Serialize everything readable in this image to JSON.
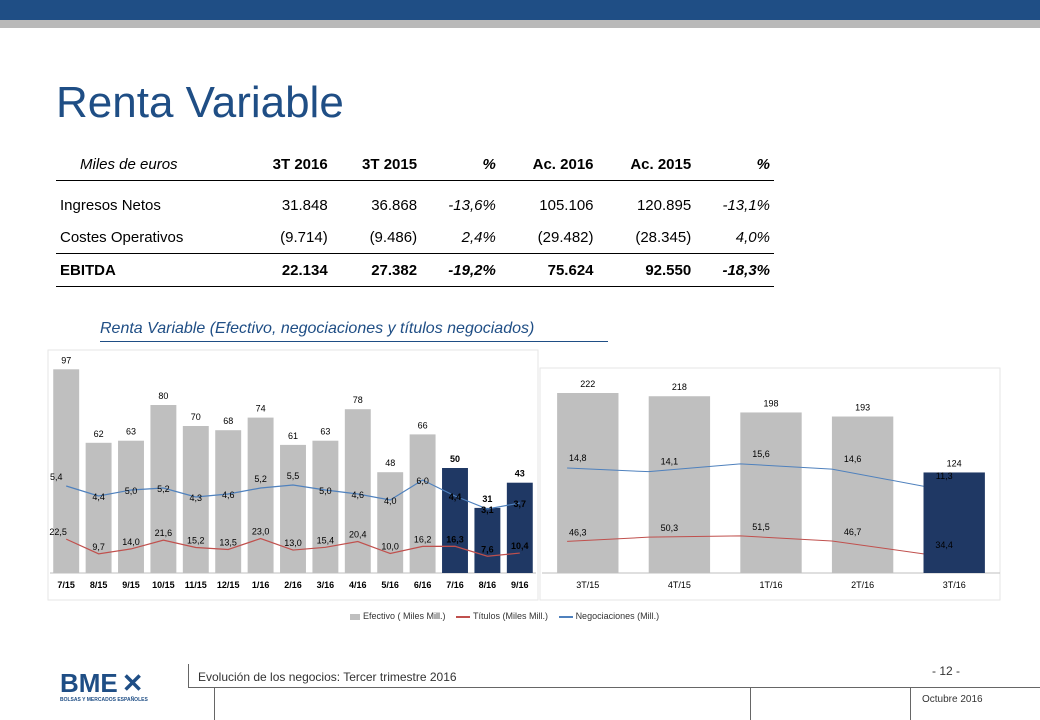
{
  "title": "Renta Variable",
  "table": {
    "headers": [
      "Miles de euros",
      "3T 2016",
      "3T 2015",
      "%",
      "Ac. 2016",
      "Ac. 2015",
      "%"
    ],
    "rows": [
      {
        "label": "Ingresos Netos",
        "v1": "31.848",
        "v2": "36.868",
        "p1": "-13,6%",
        "v3": "105.106",
        "v4": "120.895",
        "p2": "-13,1%"
      },
      {
        "label": "Costes Operativos",
        "v1": "(9.714)",
        "v2": "(9.486)",
        "p1": "2,4%",
        "v3": "(29.482)",
        "v4": "(28.345)",
        "p2": "4,0%"
      }
    ],
    "total": {
      "label": "EBITDA",
      "v1": "22.134",
      "v2": "27.382",
      "p1": "-19,2%",
      "v3": "75.624",
      "v4": "92.550",
      "p2": "-18,3%"
    }
  },
  "chart_subtitle": "Renta Variable (Efectivo, negociaciones y títulos negociados)",
  "chart_data": [
    {
      "type": "bar",
      "categories": [
        "7/15",
        "8/15",
        "9/15",
        "10/15",
        "11/15",
        "12/15",
        "1/16",
        "2/16",
        "3/16",
        "4/16",
        "5/16",
        "6/16",
        "7/16",
        "8/16",
        "9/16"
      ],
      "series": [
        {
          "name": "Efectivo ( Miles Mill.)",
          "values": [
            97,
            62,
            63,
            80,
            70,
            68,
            74,
            61,
            63,
            78,
            48,
            66,
            50,
            31,
            43
          ],
          "labels": [
            "97",
            "62",
            "63",
            "80",
            "70",
            "68",
            "74",
            "61",
            "63",
            "78",
            "48",
            "66",
            "50",
            "31",
            "43"
          ]
        },
        {
          "name": "Títulos (Miles Mill.)",
          "values": [
            22.5,
            9.7,
            14.0,
            21.6,
            15.2,
            13.5,
            23.0,
            13.0,
            15.4,
            20.4,
            10.0,
            16.2,
            16.3,
            7.6,
            10.4
          ],
          "labels": [
            "22,5",
            "9,7",
            "14,0",
            "21,6",
            "15,2",
            "13,5",
            "23,0",
            "13,0",
            "15,4",
            "20,4",
            "10,0",
            "16,2",
            "16,3",
            "7,6",
            "10,4"
          ]
        },
        {
          "name": "Negociaciones (Mill.)",
          "values": [
            5.4,
            4.4,
            5.0,
            5.2,
            4.3,
            4.6,
            5.2,
            5.5,
            5.0,
            4.6,
            4.0,
            6.0,
            4.4,
            3.1,
            3.7
          ],
          "labels": [
            "5,4",
            "4,4",
            "5,0",
            "5,2",
            "4,3",
            "4,6",
            "5,2",
            "5,5",
            "5,0",
            "4,6",
            "4,0",
            "6,0",
            "4,4",
            "3,1",
            "3,7"
          ]
        }
      ],
      "highlight_from_index": 12
    },
    {
      "type": "bar",
      "categories": [
        "3T/15",
        "4T/15",
        "1T/16",
        "2T/16",
        "3T/16"
      ],
      "series": [
        {
          "name": "Efectivo ( Miles Mill.)",
          "values": [
            222,
            218,
            198,
            193,
            124
          ],
          "labels": [
            "222",
            "218",
            "198",
            "193",
            "124"
          ]
        },
        {
          "name": "Negociaciones (Mill.)",
          "values": [
            14.8,
            14.1,
            15.6,
            14.6,
            11.3
          ],
          "labels": [
            "14,8",
            "14,1",
            "15,6",
            "14,6",
            "11,3"
          ]
        },
        {
          "name": "Títulos (Miles Mill.)",
          "values": [
            46.3,
            50.3,
            51.5,
            46.7,
            34.4
          ],
          "labels": [
            "46,3",
            "50,3",
            "51,5",
            "46,7",
            "34,4"
          ]
        }
      ],
      "highlight_from_index": 4
    }
  ],
  "legend": [
    "Efectivo (  Miles Mill.)",
    "Títulos (Miles Mill.)",
    "Negociaciones (Mill.)"
  ],
  "colors": {
    "bar": "#bfbfbf",
    "bar_highlight": "#1f3864",
    "titulos": "#c0504d",
    "negociaciones": "#4f81bd",
    "brand": "#1f4e85"
  },
  "footer": {
    "logo": "BME",
    "logo_sub": "BOLSAS Y MERCADOS ESPAÑOLES",
    "text": "Evolución de los negocios: Tercer trimestre 2016",
    "page": "- 12 -",
    "date": "Octubre 2016"
  }
}
